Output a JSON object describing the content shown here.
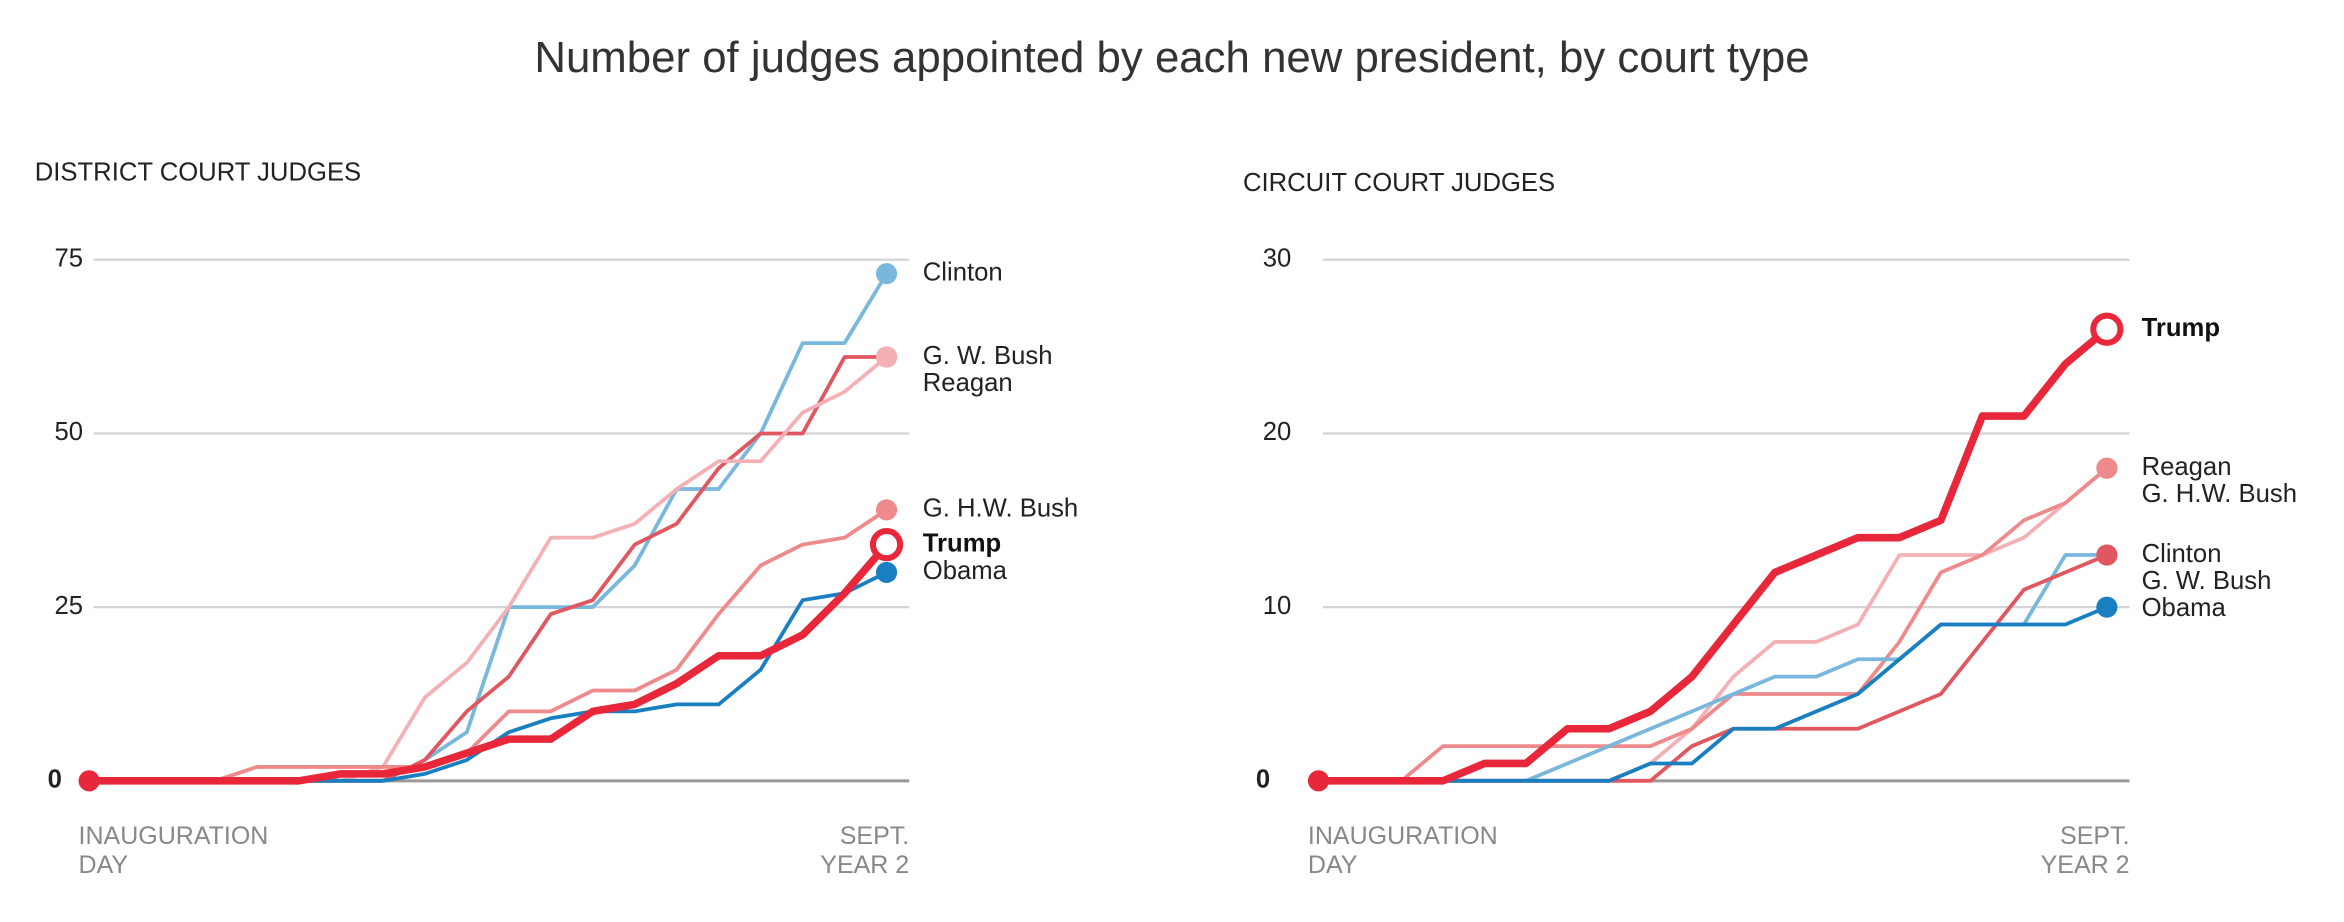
{
  "title": "Number of judges appointed by each new president, by court type",
  "chart_data": [
    {
      "type": "line",
      "title": "DISTRICT COURT JUDGES",
      "categories": [
        "INAUGURATION\nDAY",
        null,
        null,
        null,
        null,
        null,
        null,
        null,
        null,
        null,
        null,
        null,
        null,
        null,
        null,
        null,
        null,
        null,
        null,
        "SEPT.\nYEAR 2"
      ],
      "ylim": [
        0,
        75
      ],
      "yticks": [
        0,
        25,
        50,
        75
      ],
      "grid": true,
      "series": [
        {
          "name": "Clinton",
          "color": "#7ab7dc",
          "values": [
            0,
            0,
            0,
            0,
            0,
            0,
            0,
            0,
            3,
            7,
            25,
            25,
            25,
            31,
            42,
            42,
            50,
            63,
            63,
            73
          ]
        },
        {
          "name": "G. W. Bush",
          "color": "#e0575f",
          "values": [
            0,
            0,
            0,
            0,
            0,
            0,
            0,
            0,
            3,
            10,
            15,
            24,
            26,
            34,
            37,
            45,
            50,
            50,
            61,
            61
          ]
        },
        {
          "name": "Reagan",
          "color": "#f4b1b5",
          "values": [
            0,
            0,
            0,
            0,
            0,
            0,
            0,
            2,
            12,
            17,
            25,
            35,
            35,
            37,
            42,
            46,
            46,
            53,
            56,
            61
          ]
        },
        {
          "name": "G. H.W. Bush",
          "color": "#ef8a8c",
          "values": [
            0,
            0,
            0,
            0,
            2,
            2,
            2,
            2,
            2,
            4,
            10,
            10,
            13,
            13,
            16,
            24,
            31,
            34,
            35,
            39
          ]
        },
        {
          "name": "Trump",
          "color": "#e8273a",
          "values": [
            0,
            0,
            0,
            0,
            0,
            0,
            1,
            1,
            2,
            4,
            6,
            6,
            10,
            11,
            14,
            18,
            18,
            21,
            27,
            34
          ]
        },
        {
          "name": "Obama",
          "color": "#1a7fc1",
          "values": [
            0,
            0,
            0,
            0,
            0,
            0,
            0,
            0,
            1,
            3,
            7,
            9,
            10,
            10,
            11,
            11,
            16,
            26,
            27,
            30
          ]
        }
      ]
    },
    {
      "type": "line",
      "title": "CIRCUIT COURT JUDGES",
      "categories": [
        "INAUGURATION\nDAY",
        null,
        null,
        null,
        null,
        null,
        null,
        null,
        null,
        null,
        null,
        null,
        null,
        null,
        null,
        null,
        null,
        null,
        null,
        "SEPT.\nYEAR 2"
      ],
      "ylim": [
        0,
        30
      ],
      "yticks": [
        0,
        10,
        20,
        30
      ],
      "grid": true,
      "series": [
        {
          "name": "Trump",
          "color": "#e8273a",
          "values": [
            0,
            0,
            0,
            0,
            1,
            1,
            3,
            3,
            4,
            6,
            9,
            12,
            13,
            14,
            14,
            15,
            21,
            21,
            24,
            26
          ]
        },
        {
          "name": "Reagan",
          "color": "#f4b1b5",
          "values": [
            0,
            0,
            0,
            0,
            0,
            0,
            0,
            0,
            1,
            3,
            6,
            8,
            8,
            9,
            13,
            13,
            13,
            14,
            16,
            18
          ]
        },
        {
          "name": "G. H.W. Bush",
          "color": "#ef8a8c",
          "values": [
            0,
            0,
            0,
            2,
            2,
            2,
            2,
            2,
            2,
            3,
            5,
            5,
            5,
            5,
            8,
            12,
            13,
            15,
            16,
            18
          ]
        },
        {
          "name": "Clinton",
          "color": "#7ab7dc",
          "values": [
            0,
            0,
            0,
            0,
            0,
            0,
            1,
            2,
            3,
            4,
            5,
            6,
            6,
            7,
            7,
            9,
            9,
            9,
            13,
            13
          ]
        },
        {
          "name": "G. W. Bush",
          "color": "#e0575f",
          "values": [
            0,
            0,
            0,
            0,
            0,
            0,
            0,
            0,
            0,
            2,
            3,
            3,
            3,
            3,
            4,
            5,
            8,
            11,
            12,
            13
          ]
        },
        {
          "name": "Obama",
          "color": "#1a7fc1",
          "values": [
            0,
            0,
            0,
            0,
            0,
            0,
            0,
            0,
            1,
            1,
            3,
            3,
            4,
            5,
            7,
            9,
            9,
            9,
            9,
            10
          ]
        }
      ]
    }
  ]
}
